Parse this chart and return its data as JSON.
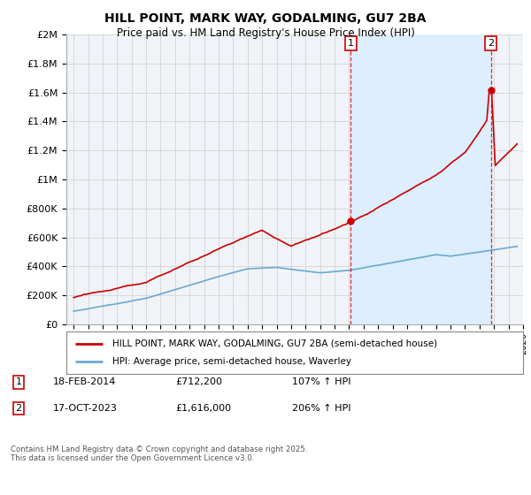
{
  "title": "HILL POINT, MARK WAY, GODALMING, GU7 2BA",
  "subtitle": "Price paid vs. HM Land Registry's House Price Index (HPI)",
  "line1_label": "HILL POINT, MARK WAY, GODALMING, GU7 2BA (semi-detached house)",
  "line2_label": "HPI: Average price, semi-detached house, Waverley",
  "line1_color": "#cc0000",
  "line2_color": "#6aa8d0",
  "marker1_date": "18-FEB-2014",
  "marker1_price": "£712,200",
  "marker1_hpi": "107% ↑ HPI",
  "marker1_year": 2014.12,
  "marker1_value": 712200,
  "marker2_date": "17-OCT-2023",
  "marker2_price": "£1,616,000",
  "marker2_hpi": "206% ↑ HPI",
  "marker2_year": 2023.79,
  "marker2_value": 1616000,
  "footer": "Contains HM Land Registry data © Crown copyright and database right 2025.\nThis data is licensed under the Open Government Licence v3.0.",
  "ylim": [
    0,
    2000000
  ],
  "xlim": [
    1994.5,
    2026.0
  ],
  "ylabel_ticks": [
    0,
    200000,
    400000,
    600000,
    800000,
    1000000,
    1200000,
    1400000,
    1600000,
    1800000,
    2000000
  ],
  "ylabel_labels": [
    "£0",
    "£200K",
    "£400K",
    "£600K",
    "£800K",
    "£1M",
    "£1.2M",
    "£1.4M",
    "£1.6M",
    "£1.8M",
    "£2M"
  ],
  "shade_color": "#ddeeff",
  "background_color": "#f0f4f8"
}
